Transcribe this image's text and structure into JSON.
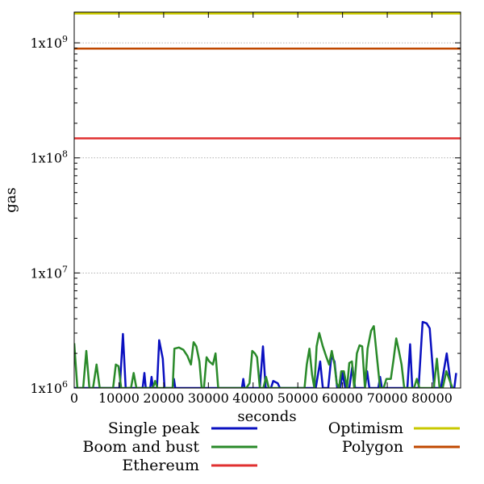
{
  "chart_data": {
    "type": "line",
    "title": "",
    "xlabel": "seconds",
    "ylabel": "gas",
    "xlim": [
      0,
      86400
    ],
    "ylim": [
      1000000,
      1850000000
    ],
    "yscale": "log",
    "grid": "horizontal-dotted",
    "legend_position": "bottom",
    "x_ticks": [
      "0",
      "10000",
      "20000",
      "30000",
      "40000",
      "50000",
      "60000",
      "70000",
      "80000"
    ],
    "x_tick_values": [
      0,
      10000,
      20000,
      30000,
      40000,
      50000,
      60000,
      70000,
      80000
    ],
    "y_ticks": [
      {
        "value": 1000000,
        "base": "1x10",
        "exp": "6"
      },
      {
        "value": 10000000,
        "base": "1x10",
        "exp": "7"
      },
      {
        "value": 100000000,
        "base": "1x10",
        "exp": "8"
      },
      {
        "value": 1000000000,
        "base": "1x10",
        "exp": "9"
      }
    ],
    "series": [
      {
        "name": "Single peak",
        "color": "#0a10c0",
        "points": [
          [
            0,
            1000000
          ],
          [
            9500,
            1000000
          ],
          [
            10200,
            1000000
          ],
          [
            10900,
            2950000
          ],
          [
            11500,
            1000000
          ],
          [
            15300,
            1000000
          ],
          [
            15700,
            1350000
          ],
          [
            16000,
            1000000
          ],
          [
            17000,
            1000000
          ],
          [
            17300,
            1250000
          ],
          [
            17600,
            1000000
          ],
          [
            18500,
            1000000
          ],
          [
            19000,
            2600000
          ],
          [
            19800,
            1800000
          ],
          [
            20200,
            1000000
          ],
          [
            22000,
            1000000
          ],
          [
            22300,
            1200000
          ],
          [
            22600,
            1000000
          ],
          [
            37500,
            1000000
          ],
          [
            37800,
            1200000
          ],
          [
            38100,
            1000000
          ],
          [
            41500,
            1000000
          ],
          [
            42200,
            2300000
          ],
          [
            42800,
            1000000
          ],
          [
            44000,
            1000000
          ],
          [
            44500,
            1150000
          ],
          [
            45500,
            1100000
          ],
          [
            46000,
            1000000
          ],
          [
            54000,
            1000000
          ],
          [
            55000,
            1700000
          ],
          [
            55600,
            1000000
          ],
          [
            56800,
            1000000
          ],
          [
            57500,
            1900000
          ],
          [
            58200,
            1700000
          ],
          [
            58800,
            1000000
          ],
          [
            59500,
            1000000
          ],
          [
            60000,
            1350000
          ],
          [
            60600,
            1000000
          ],
          [
            61500,
            1000000
          ],
          [
            62200,
            1550000
          ],
          [
            62800,
            1000000
          ],
          [
            65000,
            1000000
          ],
          [
            65500,
            1400000
          ],
          [
            66000,
            1000000
          ],
          [
            68000,
            1000000
          ],
          [
            68400,
            1250000
          ],
          [
            68800,
            1000000
          ],
          [
            74500,
            1000000
          ],
          [
            75100,
            2400000
          ],
          [
            75600,
            1000000
          ],
          [
            77000,
            1000000
          ],
          [
            77900,
            3750000
          ],
          [
            78800,
            3650000
          ],
          [
            79500,
            3300000
          ],
          [
            80500,
            1000000
          ],
          [
            82000,
            1000000
          ],
          [
            83300,
            2000000
          ],
          [
            84300,
            1000000
          ],
          [
            85000,
            1000000
          ],
          [
            85400,
            1350000
          ]
        ]
      },
      {
        "name": "Boom and bust",
        "color": "#2a8a2a",
        "points": [
          [
            0,
            2450000
          ],
          [
            700,
            1000000
          ],
          [
            2000,
            1000000
          ],
          [
            2700,
            2100000
          ],
          [
            3400,
            1000000
          ],
          [
            4200,
            1000000
          ],
          [
            5000,
            1600000
          ],
          [
            5700,
            1000000
          ],
          [
            8700,
            1000000
          ],
          [
            9300,
            1600000
          ],
          [
            9900,
            1550000
          ],
          [
            10500,
            1000000
          ],
          [
            12700,
            1000000
          ],
          [
            13300,
            1350000
          ],
          [
            13900,
            1000000
          ],
          [
            17600,
            1000000
          ],
          [
            18100,
            1150000
          ],
          [
            18600,
            1000000
          ],
          [
            22000,
            1000000
          ],
          [
            22400,
            2200000
          ],
          [
            23400,
            2250000
          ],
          [
            24400,
            2150000
          ],
          [
            25300,
            1900000
          ],
          [
            26100,
            1600000
          ],
          [
            26700,
            2500000
          ],
          [
            27300,
            2300000
          ],
          [
            28000,
            1700000
          ],
          [
            28500,
            1000000
          ],
          [
            29000,
            1000000
          ],
          [
            29600,
            1850000
          ],
          [
            30200,
            1700000
          ],
          [
            31000,
            1600000
          ],
          [
            31600,
            2000000
          ],
          [
            32200,
            1000000
          ],
          [
            38500,
            1000000
          ],
          [
            39200,
            1100000
          ],
          [
            39800,
            2100000
          ],
          [
            40400,
            2000000
          ],
          [
            40900,
            1850000
          ],
          [
            41500,
            1000000
          ],
          [
            42300,
            1000000
          ],
          [
            42900,
            1250000
          ],
          [
            43500,
            1000000
          ],
          [
            51500,
            1000000
          ],
          [
            52000,
            1600000
          ],
          [
            52600,
            2200000
          ],
          [
            53200,
            1300000
          ],
          [
            53700,
            1000000
          ],
          [
            54200,
            2300000
          ],
          [
            54800,
            3000000
          ],
          [
            55600,
            2300000
          ],
          [
            56300,
            1900000
          ],
          [
            57000,
            1600000
          ],
          [
            57600,
            2100000
          ],
          [
            58200,
            1600000
          ],
          [
            58700,
            1100000
          ],
          [
            59200,
            1000000
          ],
          [
            59700,
            1400000
          ],
          [
            60300,
            1400000
          ],
          [
            61000,
            1000000
          ],
          [
            61500,
            1650000
          ],
          [
            62100,
            1700000
          ],
          [
            62600,
            1000000
          ],
          [
            63200,
            2000000
          ],
          [
            63800,
            2350000
          ],
          [
            64400,
            2300000
          ],
          [
            65000,
            1000000
          ],
          [
            65600,
            2200000
          ],
          [
            66400,
            3150000
          ],
          [
            67000,
            3450000
          ],
          [
            67600,
            2000000
          ],
          [
            68400,
            1000000
          ],
          [
            69200,
            1000000
          ],
          [
            69800,
            1200000
          ],
          [
            70800,
            1200000
          ],
          [
            71400,
            1750000
          ],
          [
            72000,
            2700000
          ],
          [
            72600,
            2100000
          ],
          [
            73200,
            1600000
          ],
          [
            73800,
            1000000
          ],
          [
            76000,
            1000000
          ],
          [
            76600,
            1200000
          ],
          [
            77200,
            1000000
          ],
          [
            80400,
            1000000
          ],
          [
            81100,
            1800000
          ],
          [
            81700,
            1000000
          ],
          [
            82400,
            1000000
          ],
          [
            83200,
            1400000
          ],
          [
            84000,
            1150000
          ],
          [
            84600,
            1000000
          ]
        ]
      },
      {
        "name": "Ethereum",
        "color": "#e03030",
        "points": [
          [
            0,
            148000000
          ],
          [
            86400,
            148000000
          ]
        ]
      },
      {
        "name": "Optimism",
        "color": "#c8c800",
        "points": [
          [
            0,
            1800000000
          ],
          [
            86400,
            1800000000
          ]
        ]
      },
      {
        "name": "Polygon",
        "color": "#c04800",
        "points": [
          [
            0,
            890000000
          ],
          [
            86400,
            890000000
          ]
        ]
      }
    ],
    "legend_columns": [
      [
        "Single peak",
        "Boom and bust",
        "Ethereum"
      ],
      [
        "Optimism",
        "Polygon"
      ]
    ]
  }
}
